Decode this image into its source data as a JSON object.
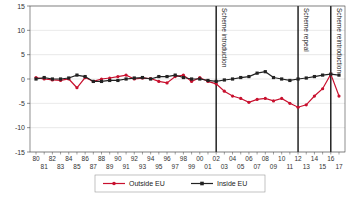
{
  "chart_data": {
    "type": "line",
    "categories": [
      "80",
      "81",
      "82",
      "83",
      "84",
      "85",
      "86",
      "87",
      "88",
      "89",
      "90",
      "91",
      "92",
      "93",
      "94",
      "95",
      "96",
      "97",
      "98",
      "99",
      "00",
      "01",
      "02",
      "03",
      "04",
      "05",
      "06",
      "07",
      "08",
      "09",
      "10",
      "11",
      "12",
      "13",
      "14",
      "15",
      "16",
      "17"
    ],
    "series": [
      {
        "name": "Outside EU",
        "color": "#c8102e",
        "marker": "circle",
        "values": [
          0.3,
          0,
          -0.2,
          -0.3,
          0,
          -1.8,
          0.3,
          -0.5,
          0,
          0.2,
          0.5,
          0.8,
          0,
          0.2,
          0.1,
          -0.5,
          -0.8,
          0.5,
          0.8,
          -0.5,
          0.3,
          -0.5,
          -1,
          -2.5,
          -3.5,
          -4,
          -4.8,
          -4.2,
          -4,
          -4.5,
          -4,
          -5,
          -5.8,
          -5.3,
          -3.5,
          -2,
          1,
          -3.5
        ]
      },
      {
        "name": "Inside EU",
        "color": "#222222",
        "marker": "square",
        "values": [
          0,
          0.3,
          0,
          0,
          0.2,
          0.8,
          0.5,
          -0.5,
          -0.5,
          -0.3,
          -0.3,
          0,
          0.2,
          0.3,
          0,
          0.5,
          0.5,
          0.8,
          0.3,
          0,
          0,
          -0.3,
          -0.5,
          -0.2,
          0,
          0.3,
          0.5,
          1.2,
          1.5,
          0.3,
          0,
          -0.3,
          0,
          0.2,
          0.5,
          0.8,
          1,
          0.8
        ]
      }
    ],
    "ylim": [
      -15,
      15
    ],
    "yticks": [
      -15,
      -10,
      -5,
      0,
      5,
      10,
      15
    ],
    "grid": true,
    "legend": "bottom",
    "annotations": [
      {
        "x": "02",
        "text": "Scheme introduction"
      },
      {
        "x": "12",
        "text": "Scheme repeal"
      },
      {
        "x": "16",
        "text": "Scheme reintroduction"
      }
    ]
  }
}
